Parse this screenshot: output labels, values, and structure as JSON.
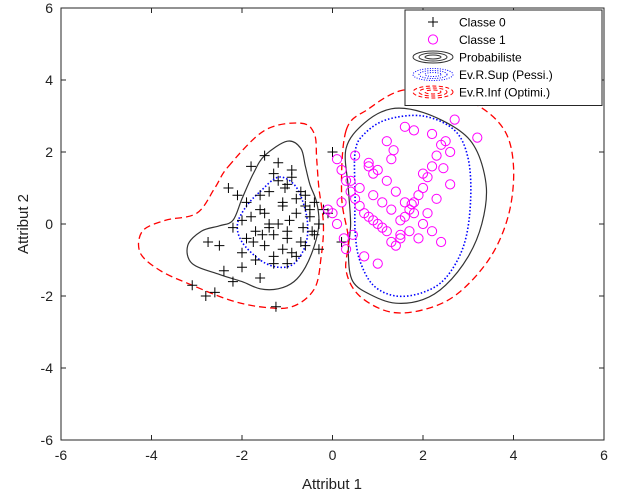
{
  "chart_data": {
    "type": "scatter",
    "xlabel": "Attribut 1",
    "ylabel": "Attribut 2",
    "xlim": [
      -6,
      6
    ],
    "ylim": [
      -6,
      6
    ],
    "xticks": [
      -6,
      -4,
      -2,
      0,
      2,
      4,
      6
    ],
    "yticks": [
      -6,
      -4,
      -2,
      0,
      2,
      4,
      6
    ],
    "xtick_labels": [
      "-6",
      "-4",
      "-2",
      "0",
      "2",
      "4",
      "6"
    ],
    "ytick_labels": [
      "-6",
      "-4",
      "-2",
      "0",
      "2",
      "4",
      "6"
    ],
    "grid": false,
    "legend_position": "top-right",
    "series": [
      {
        "name": "Classe 0",
        "kind": "points",
        "marker": "plus",
        "color": "#000000",
        "x": [
          -1.3,
          -1.2,
          -1.0,
          -0.9,
          -1.4,
          -1.6,
          -1.1,
          -0.8,
          -0.6,
          -0.5,
          -1.5,
          -1.8,
          -2.0,
          -2.2,
          -1.7,
          -1.3,
          -1.0,
          -0.7,
          -0.4,
          -0.3,
          -1.2,
          -1.4,
          -1.6,
          -1.9,
          -2.1,
          -2.3,
          -1.5,
          -1.1,
          -0.9,
          -0.6,
          -0.5,
          -0.8,
          -1.0,
          -1.3,
          -1.7,
          -2.0,
          -2.4,
          -2.6,
          -2.8,
          -3.1,
          -1.2,
          -0.9,
          -0.7,
          -1.5,
          -1.8,
          -1.1,
          -0.6,
          -0.4,
          -0.2,
          -0.1,
          0.0,
          0.2,
          -1.4,
          -1.0,
          -1.6,
          -2.2,
          -1.9,
          -1.3,
          -0.8,
          -1.25,
          -2.0,
          -1.75,
          -0.95,
          -0.45,
          -2.5,
          -2.75,
          -0.3,
          -1.05,
          -1.55,
          -0.65
        ],
        "y": [
          1.4,
          1.2,
          1.1,
          1.3,
          0.9,
          0.8,
          0.6,
          0.7,
          0.5,
          0.4,
          0.3,
          0.2,
          0.1,
          -0.1,
          -0.2,
          -0.3,
          -0.4,
          -0.5,
          -0.3,
          0.0,
          0.0,
          -0.1,
          0.4,
          0.6,
          0.8,
          1.0,
          -0.6,
          -0.7,
          -0.8,
          -0.6,
          0.2,
          0.3,
          -0.2,
          -0.9,
          -1.0,
          -1.2,
          -1.3,
          -1.9,
          -2.0,
          -1.7,
          1.7,
          1.5,
          0.9,
          1.9,
          1.6,
          0.5,
          0.8,
          0.6,
          0.4,
          0.3,
          2.0,
          -0.5,
          0.0,
          -1.1,
          -1.5,
          -1.6,
          -0.4,
          -1.1,
          -0.9,
          -2.3,
          -0.8,
          -0.5,
          0.1,
          -0.2,
          -0.6,
          -0.5,
          -0.7,
          1.0,
          -0.3,
          -0.1
        ]
      },
      {
        "name": "Classe 1",
        "kind": "points",
        "marker": "circle",
        "color": "#ff00ff",
        "x": [
          0.1,
          0.2,
          0.3,
          0.4,
          0.5,
          0.6,
          0.7,
          0.8,
          0.9,
          1.0,
          1.1,
          1.2,
          1.3,
          1.4,
          1.5,
          1.6,
          1.7,
          1.8,
          1.9,
          2.0,
          2.1,
          2.2,
          2.3,
          2.4,
          2.5,
          2.6,
          0.5,
          0.8,
          1.0,
          1.2,
          1.4,
          1.6,
          1.8,
          2.0,
          2.2,
          2.4,
          0.6,
          0.9,
          1.1,
          1.3,
          1.5,
          1.7,
          1.9,
          2.1,
          2.3,
          0.3,
          0.7,
          1.0,
          1.5,
          2.0,
          2.6,
          0.4,
          0.9,
          1.3,
          1.8,
          2.2,
          2.7,
          3.2,
          1.6,
          1.2,
          0.8,
          -0.1,
          0.0,
          0.2,
          0.1,
          0.25,
          0.45,
          1.35,
          2.45,
          1.75
        ],
        "y": [
          1.8,
          1.5,
          1.2,
          0.9,
          0.7,
          0.5,
          0.3,
          0.2,
          0.1,
          0.0,
          -0.1,
          -0.2,
          -0.5,
          -0.6,
          -0.3,
          0.2,
          0.4,
          0.6,
          0.8,
          1.0,
          1.3,
          1.6,
          1.9,
          2.2,
          2.3,
          2.0,
          1.9,
          1.7,
          1.5,
          1.2,
          0.9,
          0.6,
          0.3,
          0.0,
          -0.2,
          -0.5,
          1.0,
          0.8,
          0.6,
          0.4,
          0.1,
          -0.2,
          -0.4,
          0.3,
          0.7,
          -0.7,
          -0.9,
          -1.1,
          -0.4,
          1.4,
          1.1,
          1.2,
          1.4,
          1.8,
          2.6,
          2.5,
          2.9,
          2.4,
          2.7,
          2.3,
          1.6,
          0.4,
          0.3,
          0.6,
          0.0,
          -0.4,
          -0.3,
          2.05,
          1.55,
          0.55
        ]
      },
      {
        "name": "Probabiliste",
        "kind": "contour",
        "style": "solid",
        "color": "#333333",
        "x": [
          -1.5,
          -1.0,
          -0.7,
          -0.6,
          -0.5,
          -0.35,
          -0.3,
          -0.4,
          -0.6,
          -0.85,
          -1.2,
          -1.6,
          -2.0,
          -2.5,
          -3.1,
          -3.2,
          -2.9,
          -2.5,
          -2.2,
          -2.0,
          -1.75,
          -1.5
        ],
        "y": [
          1.9,
          2.3,
          2.1,
          1.6,
          1.1,
          0.6,
          0.0,
          -0.6,
          -1.2,
          -1.6,
          -1.8,
          -1.8,
          -1.6,
          -1.4,
          -1.1,
          -0.6,
          -0.2,
          -0.05,
          0.1,
          0.7,
          1.4,
          1.9
        ],
        "contours": [
          {
            "x": [
              0.3,
              0.7,
              1.3,
              2.0,
              2.8,
              3.2,
              3.4,
              3.3,
              3.0,
              2.5,
              2.0,
              1.4,
              0.9,
              0.45,
              0.35,
              0.4,
              0.35,
              0.3
            ],
            "y": [
              2.1,
              2.8,
              3.2,
              3.1,
              2.6,
              2.0,
              1.0,
              0.0,
              -0.9,
              -1.7,
              -2.1,
              -2.2,
              -2.0,
              -1.6,
              -0.8,
              0.0,
              1.0,
              2.1
            ]
          }
        ]
      },
      {
        "name": "Ev.R.Sup (Pessi.)",
        "kind": "contour",
        "style": "dotted",
        "color": "#0000ff",
        "x": [
          0.5,
          0.7,
          1.2,
          2.0,
          2.7,
          3.0,
          3.05,
          2.9,
          2.5,
          2.0,
          1.4,
          0.9,
          0.6,
          0.5,
          0.5,
          0.5
        ],
        "y": [
          2.0,
          2.5,
          2.9,
          3.0,
          2.6,
          1.8,
          0.6,
          -0.6,
          -1.5,
          -1.9,
          -2.0,
          -1.7,
          -1.0,
          -0.2,
          0.8,
          2.0
        ],
        "contours": [
          {
            "x": [
              -1.6,
              -1.2,
              -0.85,
              -0.65,
              -0.55,
              -0.6,
              -0.85,
              -1.2,
              -1.6,
              -2.0,
              -2.1,
              -1.9,
              -1.6
            ],
            "y": [
              0.9,
              1.3,
              1.1,
              0.6,
              0.0,
              -0.6,
              -1.1,
              -1.2,
              -1.0,
              -0.5,
              0.0,
              0.5,
              0.9
            ]
          }
        ]
      },
      {
        "name": "Ev.R.Inf (Optimi.)",
        "kind": "contour",
        "style": "dashed",
        "color": "#ff0000",
        "x": [
          -2.3,
          -1.5,
          -0.7,
          -0.4,
          -0.35,
          -0.3,
          -0.2,
          -0.25,
          -0.4,
          -0.9,
          -1.6,
          -2.3,
          -3.1,
          -3.8,
          -4.25,
          -4.2,
          -3.7,
          -3.0,
          -2.6,
          -2.3
        ],
        "y": [
          1.6,
          2.6,
          2.8,
          2.5,
          1.8,
          1.0,
          0.0,
          -0.9,
          -1.8,
          -2.3,
          -2.3,
          -2.1,
          -1.7,
          -1.3,
          -0.8,
          -0.2,
          0.1,
          0.3,
          1.0,
          1.6
        ],
        "contours": [
          {
            "x": [
              0.3,
              0.8,
              1.5,
              2.3,
              3.2,
              3.8,
              4.0,
              3.9,
              3.5,
              2.8,
              2.1,
              1.3,
              0.6,
              0.3,
              0.35,
              0.2,
              0.3
            ],
            "y": [
              2.6,
              3.2,
              3.7,
              3.7,
              3.3,
              2.6,
              1.6,
              0.3,
              -0.9,
              -1.9,
              -2.35,
              -2.45,
              -2.0,
              -1.3,
              -0.4,
              0.8,
              2.6
            ]
          }
        ]
      }
    ]
  }
}
